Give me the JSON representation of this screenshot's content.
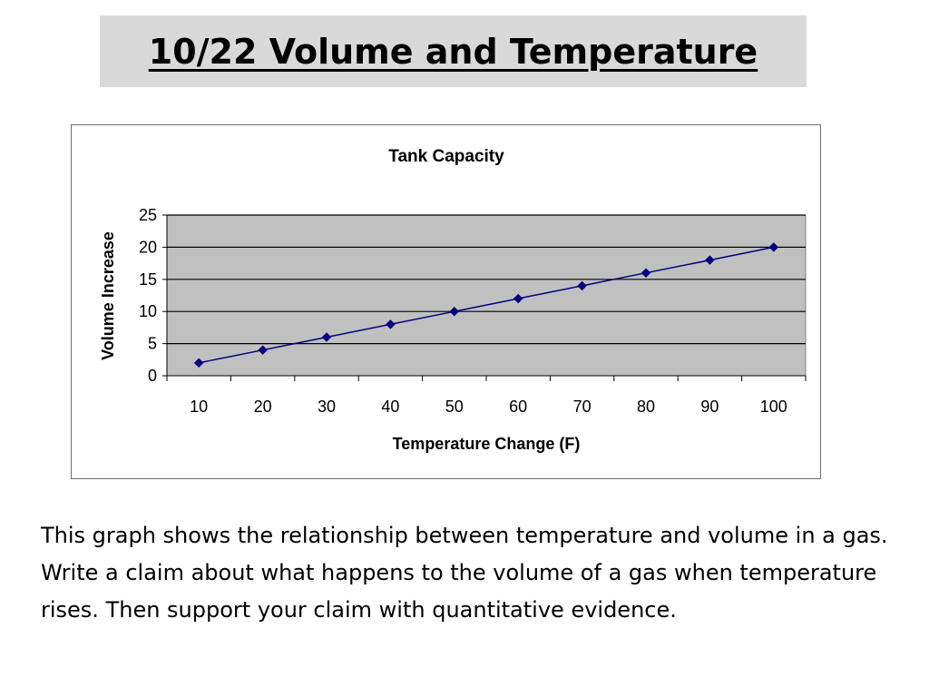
{
  "slide": {
    "title": "10/22 Volume and Temperature",
    "prompt": "This graph shows the relationship between temperature and volume in a gas.  Write a claim about what happens to the volume of a gas when temperature rises. Then support your claim with quantitative evidence."
  },
  "chart_data": {
    "type": "line",
    "title": "Tank Capacity",
    "xlabel": "Temperature Change (F)",
    "ylabel": "Volume Increase",
    "categories": [
      "10",
      "20",
      "30",
      "40",
      "50",
      "60",
      "70",
      "80",
      "90",
      "100"
    ],
    "series": [
      {
        "values": [
          2,
          4,
          6,
          8,
          10,
          12,
          14,
          16,
          18,
          20
        ]
      }
    ],
    "yticks": [
      "0",
      "5",
      "10",
      "15",
      "20",
      "25"
    ],
    "ylim": [
      0,
      25
    ],
    "grid": true,
    "plot_background": "#c0c0c0",
    "line_color": "#00007f",
    "marker": "diamond",
    "legend": "none"
  }
}
